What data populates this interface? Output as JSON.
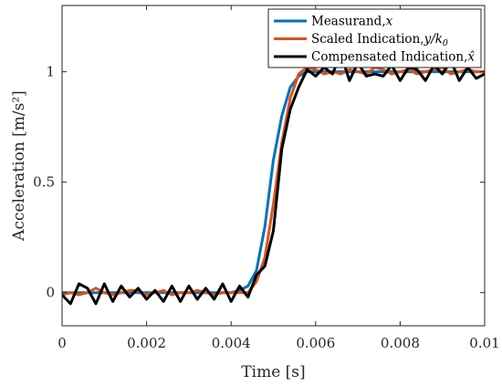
{
  "chart_data": {
    "type": "line",
    "xlabel": "Time [s]",
    "ylabel": "Acceleration [m/s²]",
    "xlim": [
      0,
      0.01
    ],
    "ylim": [
      -0.15,
      1.3
    ],
    "xticks": [
      0,
      0.002,
      0.004,
      0.006,
      0.008,
      0.01
    ],
    "xtick_labels": [
      "0",
      "0.002",
      "0.004",
      "0.006",
      "0.008",
      "0.01"
    ],
    "yticks": [
      0,
      0.5,
      1
    ],
    "ytick_labels": [
      "0",
      "0.5",
      "1"
    ],
    "grid": false,
    "legend_position": "top-right",
    "series": [
      {
        "name": "Measurand, x",
        "label_text": "Measurand,",
        "label_math": "x",
        "color": "#0072BD",
        "x": [
          0,
          0.0002,
          0.0004,
          0.0006,
          0.0008,
          0.001,
          0.0012,
          0.0014,
          0.0016,
          0.0018,
          0.002,
          0.0022,
          0.0024,
          0.0026,
          0.0028,
          0.003,
          0.0032,
          0.0034,
          0.0036,
          0.0038,
          0.004,
          0.0042,
          0.0044,
          0.0046,
          0.0048,
          0.005,
          0.0052,
          0.0054,
          0.0056,
          0.0058,
          0.006,
          0.0062,
          0.0064,
          0.0066,
          0.0068,
          0.007,
          0.0072,
          0.0074,
          0.0076,
          0.0078,
          0.008,
          0.0082,
          0.0084,
          0.0086,
          0.0088,
          0.009,
          0.0092,
          0.0094,
          0.0096,
          0.0098,
          0.01
        ],
        "y": [
          0,
          0,
          0,
          0,
          0,
          0,
          0,
          0,
          0,
          0,
          0,
          0,
          0,
          0,
          0,
          0,
          0,
          0,
          0,
          0,
          0,
          0.01,
          0.03,
          0.1,
          0.3,
          0.6,
          0.8,
          0.93,
          0.98,
          1.0,
          1.0,
          1.0,
          1.0,
          1.0,
          1.0,
          1.0,
          1.0,
          1.0,
          1.0,
          1.0,
          1.0,
          1.0,
          1.0,
          1.0,
          1.0,
          1.0,
          1.0,
          1.0,
          1.0,
          1.0,
          1.0
        ]
      },
      {
        "name": "Scaled Indication, y/k0",
        "label_text": "Scaled Indication,",
        "label_math": "y/k",
        "label_sub": "0",
        "color": "#D95319",
        "x": [
          0,
          0.0002,
          0.0004,
          0.0006,
          0.0008,
          0.001,
          0.0012,
          0.0014,
          0.0016,
          0.0018,
          0.002,
          0.0022,
          0.0024,
          0.0026,
          0.0028,
          0.003,
          0.0032,
          0.0034,
          0.0036,
          0.0038,
          0.004,
          0.0042,
          0.0044,
          0.0046,
          0.0048,
          0.005,
          0.0052,
          0.0054,
          0.0056,
          0.0058,
          0.006,
          0.0062,
          0.0064,
          0.0066,
          0.0068,
          0.007,
          0.0072,
          0.0074,
          0.0076,
          0.0078,
          0.008,
          0.0082,
          0.0084,
          0.0086,
          0.0088,
          0.009,
          0.0092,
          0.0094,
          0.0096,
          0.0098,
          0.01
        ],
        "y": [
          -0.01,
          0.0,
          -0.01,
          0.0,
          0.02,
          0.0,
          -0.01,
          0.0,
          0.01,
          0.01,
          -0.01,
          0.0,
          0.01,
          -0.01,
          0.0,
          0.0,
          0.01,
          0.0,
          -0.01,
          0.0,
          0.0,
          0.0,
          0.0,
          0.05,
          0.16,
          0.4,
          0.68,
          0.88,
          0.99,
          1.02,
          1.01,
          0.99,
          1.0,
          0.99,
          1.01,
          1.0,
          0.99,
          1.02,
          1.01,
          0.99,
          1.0,
          1.01,
          0.99,
          1.0,
          1.01,
          1.02,
          0.99,
          1.0,
          1.01,
          1.0,
          1.0
        ]
      },
      {
        "name": "Compensated Indication, x̂",
        "label_text": "Compensated Indication,",
        "label_math": "x̂",
        "color": "#000000",
        "x": [
          0,
          0.0002,
          0.0004,
          0.0006,
          0.0008,
          0.001,
          0.0012,
          0.0014,
          0.0016,
          0.0018,
          0.002,
          0.0022,
          0.0024,
          0.0026,
          0.0028,
          0.003,
          0.0032,
          0.0034,
          0.0036,
          0.0038,
          0.004,
          0.0042,
          0.0044,
          0.0046,
          0.0048,
          0.005,
          0.0052,
          0.0054,
          0.0056,
          0.0058,
          0.006,
          0.0062,
          0.0064,
          0.0066,
          0.0068,
          0.007,
          0.0072,
          0.0074,
          0.0076,
          0.0078,
          0.008,
          0.0082,
          0.0084,
          0.0086,
          0.0088,
          0.009,
          0.0092,
          0.0094,
          0.0096,
          0.0098,
          0.01
        ],
        "y": [
          -0.01,
          -0.05,
          0.04,
          0.02,
          -0.05,
          0.04,
          -0.04,
          0.03,
          -0.02,
          0.02,
          -0.03,
          0.01,
          -0.04,
          0.03,
          -0.04,
          0.03,
          -0.03,
          0.02,
          -0.03,
          0.04,
          -0.04,
          0.03,
          -0.02,
          0.08,
          0.12,
          0.28,
          0.65,
          0.83,
          0.93,
          1.01,
          0.98,
          1.02,
          0.99,
          1.08,
          0.96,
          1.04,
          0.98,
          0.99,
          0.98,
          1.03,
          0.96,
          1.02,
          1.01,
          0.96,
          1.03,
          0.99,
          1.05,
          0.96,
          1.02,
          0.97,
          0.99
        ]
      }
    ]
  }
}
